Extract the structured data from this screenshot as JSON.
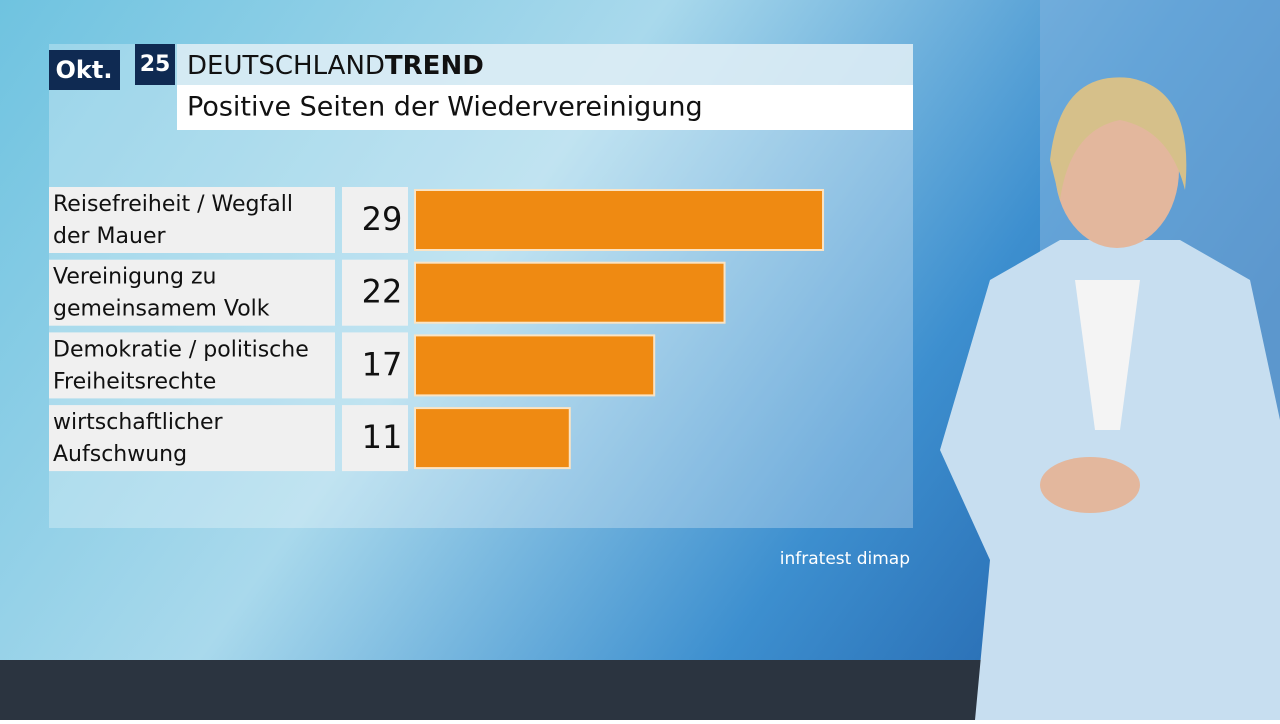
{
  "chart_data": {
    "type": "bar",
    "orientation": "horizontal",
    "badge_month": "Okt.",
    "badge_year": "25",
    "brand_light": "DEUTSCHLAND",
    "brand_bold": "TREND",
    "title": "Positive Seiten der Wiedervereinigung",
    "categories": [
      "Reisefreiheit / Wegfall der Mauer",
      "Vereinigung zu gemeinsamem Volk",
      "Demokratie / politische Freiheitsrechte",
      "wirtschaftlicher Aufschwung"
    ],
    "values": [
      29,
      22,
      17,
      11
    ],
    "color": "#ef8a12",
    "source": "infratest dimap"
  }
}
